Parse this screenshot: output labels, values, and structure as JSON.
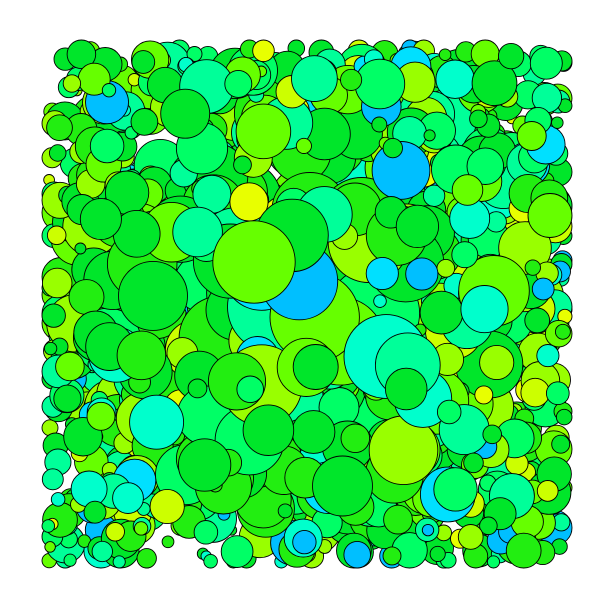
{
  "artwork": {
    "type": "packed-circles",
    "background": "#ffffff",
    "stroke_color": "#000000",
    "palette": [
      "#00e62a",
      "#00ff66",
      "#00ff99",
      "#00ffcc",
      "#00e0ff",
      "#00bfff",
      "#66ff00",
      "#99ff00",
      "#ccff00",
      "#e8ff00",
      "#22ee11"
    ],
    "seed": 42,
    "count": 1300
  }
}
